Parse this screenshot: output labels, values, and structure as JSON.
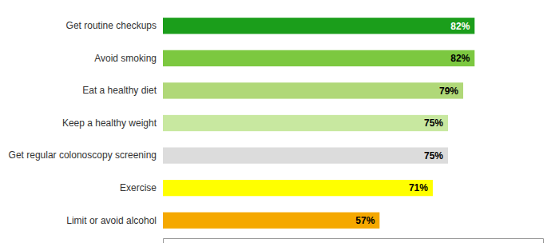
{
  "chart_data": {
    "type": "bar",
    "orientation": "horizontal",
    "categories": [
      "Limit or avoid alcohol",
      "Exercise",
      "Get regular colonoscopy screening",
      "Keep a healthy weight",
      "Eat a healthy diet",
      "Avoid smoking",
      "Get routine checkups"
    ],
    "values": [
      57,
      71,
      75,
      75,
      79,
      82,
      82
    ],
    "value_labels": [
      "57%",
      "71%",
      "75%",
      "75%",
      "79%",
      "82%",
      "82%"
    ],
    "colors": [
      "#F5A800",
      "#FFFF00",
      "#DCDCDC",
      "#C8E8A0",
      "#B0D878",
      "#7CC840",
      "#1B9E1B"
    ],
    "xlim": [
      0,
      100
    ],
    "xticks": [],
    "data_labels": true,
    "tick_labels": "y",
    "grid": false
  }
}
